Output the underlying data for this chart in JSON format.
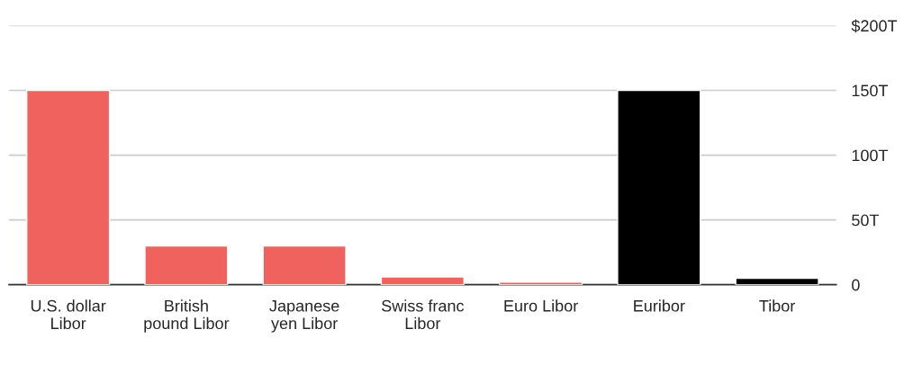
{
  "chart_data": {
    "type": "bar",
    "categories": [
      "U.S. dollar\nLibor",
      "British\npound Libor",
      "Japanese\nyen Libor",
      "Swiss franc\nLibor",
      "Euro Libor",
      "Euribor",
      "Tibor"
    ],
    "values": [
      150,
      30,
      30,
      6,
      2,
      150,
      5
    ],
    "colors": [
      "#f0625d",
      "#f0625d",
      "#f0625d",
      "#f0625d",
      "#f0625d",
      "#000000",
      "#000000"
    ],
    "ylim": [
      0,
      200
    ],
    "yticks": [
      0,
      {
        "value": 50,
        "label": "50T"
      },
      {
        "value": 100,
        "label": "100T"
      },
      {
        "value": 150,
        "label": "150T"
      },
      {
        "value": 200,
        "label": "$200T"
      }
    ],
    "grid": "y"
  }
}
